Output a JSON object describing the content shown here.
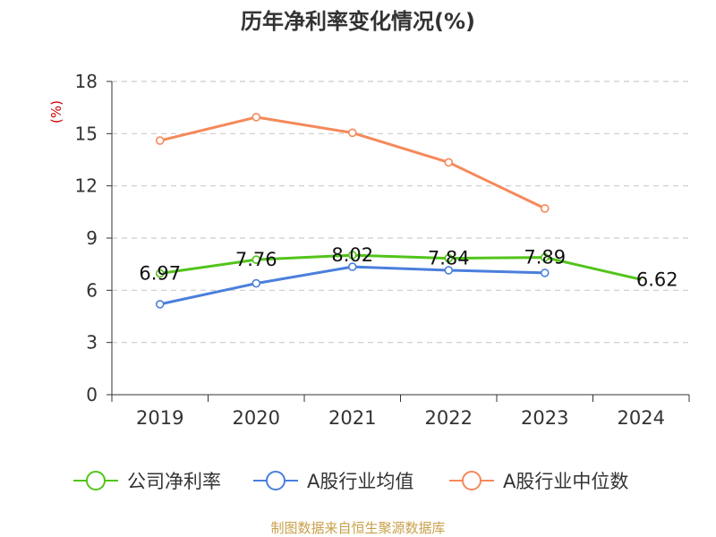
{
  "title": "历年净利率变化情况(%)",
  "y_unit_label": "(%)",
  "source_note": "制图数据来自恒生聚源数据库",
  "colors": {
    "title": "#333333",
    "axis": "#333333",
    "grid": "#cccccc",
    "unit_label": "#cc0000",
    "source_note": "#c8a04a",
    "company": "#52c41a",
    "industry_avg": "#4a7fdc",
    "industry_median": "#f5895a"
  },
  "chart_data": {
    "type": "line",
    "title": "历年净利率变化情况(%)",
    "ylabel": "(%)",
    "categories": [
      "2019",
      "2020",
      "2021",
      "2022",
      "2023",
      "2024"
    ],
    "yticks": [
      "0",
      "3",
      "6",
      "9",
      "12",
      "15",
      "18"
    ],
    "ylim": [
      0,
      18
    ],
    "grid": true,
    "legend_position": "bottom",
    "series": [
      {
        "name": "公司净利率",
        "color_key": "company",
        "values": [
          6.97,
          7.76,
          8.02,
          7.84,
          7.89,
          6.62
        ],
        "data_labels": [
          "6.97",
          "7.76",
          "8.02",
          "7.84",
          "7.89",
          "6.62"
        ]
      },
      {
        "name": "A股行业均值",
        "color_key": "industry_avg",
        "values": [
          5.2,
          6.4,
          7.35,
          7.15,
          7.0,
          null
        ]
      },
      {
        "name": "A股行业中位数",
        "color_key": "industry_median",
        "values": [
          14.6,
          15.95,
          15.05,
          13.35,
          10.7,
          null
        ]
      }
    ]
  }
}
